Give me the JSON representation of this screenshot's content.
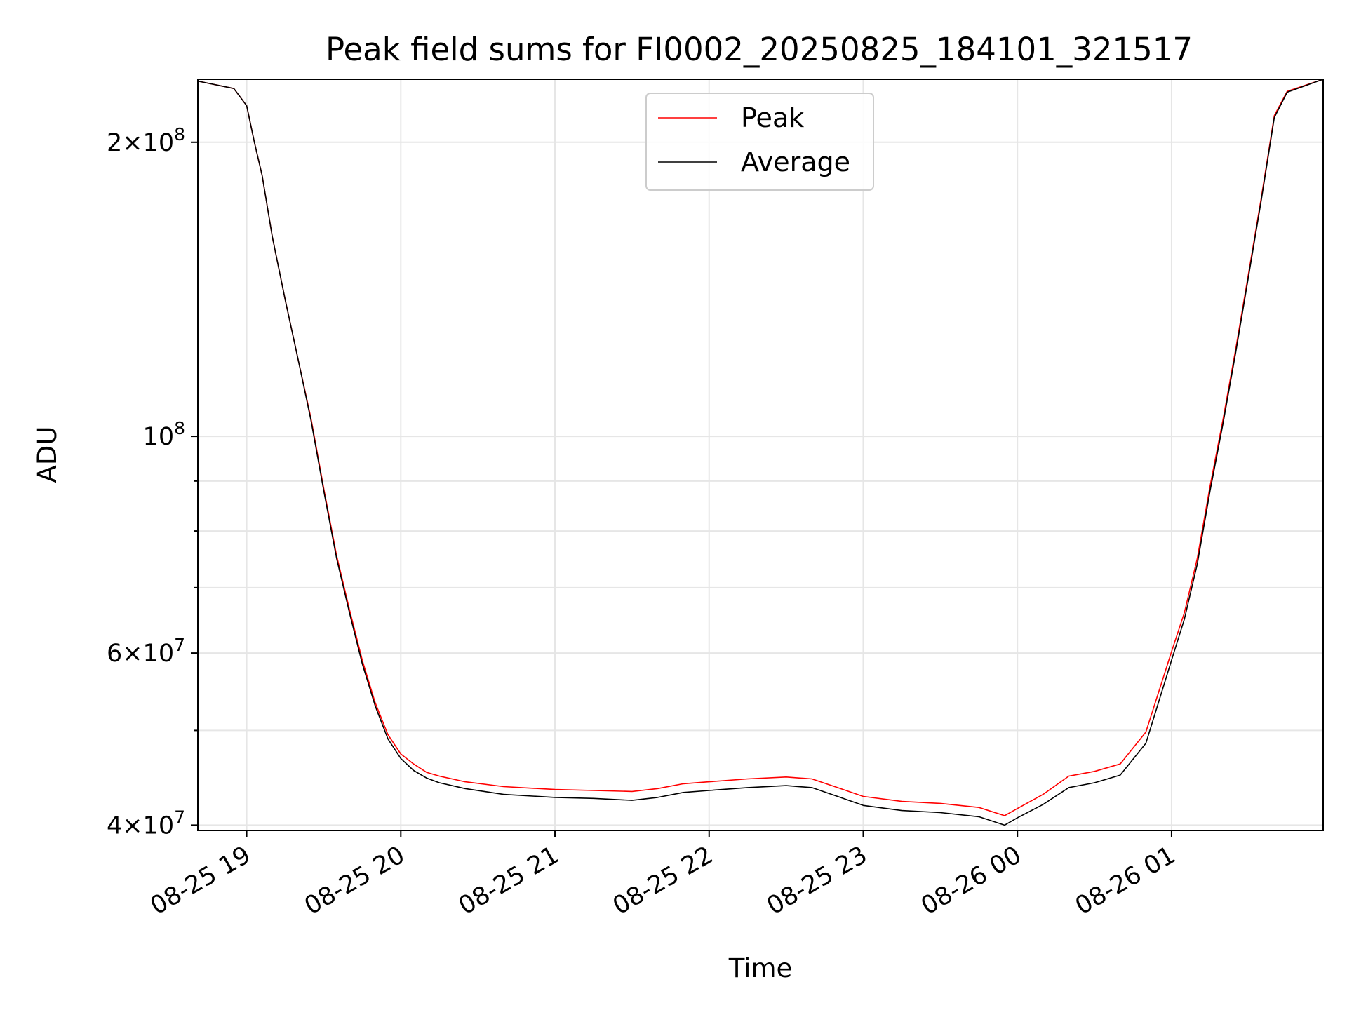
{
  "chart_data": {
    "type": "line",
    "title": "Peak field sums for FI0002_20250825_184101_321517",
    "xlabel": "Time",
    "ylabel": "ADU",
    "y_scale": "log",
    "ylim": [
      39500000,
      232000000
    ],
    "xlim": [
      "2025-08-25 18:41",
      "2025-08-26 01:59"
    ],
    "x_ticks": [
      {
        "t": "2025-08-25 19:00",
        "label": "08-25 19"
      },
      {
        "t": "2025-08-25 20:00",
        "label": "08-25 20"
      },
      {
        "t": "2025-08-25 21:00",
        "label": "08-25 21"
      },
      {
        "t": "2025-08-25 22:00",
        "label": "08-25 22"
      },
      {
        "t": "2025-08-25 23:00",
        "label": "08-25 23"
      },
      {
        "t": "2025-08-26 00:00",
        "label": "08-26 00"
      },
      {
        "t": "2025-08-26 01:00",
        "label": "08-26 01"
      }
    ],
    "y_ticks": [
      {
        "v": 40000000,
        "base": "4",
        "exp": "7",
        "major": true
      },
      {
        "v": 50000000,
        "major": false
      },
      {
        "v": 60000000,
        "base": "6",
        "exp": "7",
        "major": true
      },
      {
        "v": 70000000,
        "major": false
      },
      {
        "v": 80000000,
        "major": false
      },
      {
        "v": 90000000,
        "major": false
      },
      {
        "v": 100000000,
        "base": "",
        "exp": "8",
        "major": true
      },
      {
        "v": 200000000,
        "base": "2",
        "exp": "8",
        "major": true
      }
    ],
    "grid": true,
    "legend_position": "top-center",
    "series": [
      {
        "name": "Average",
        "color": "#000000",
        "x": [
          "2025-08-25 18:41",
          "2025-08-25 18:55",
          "2025-08-25 19:00",
          "2025-08-25 19:03",
          "2025-08-25 19:06",
          "2025-08-25 19:10",
          "2025-08-25 19:15",
          "2025-08-25 19:20",
          "2025-08-25 19:25",
          "2025-08-25 19:30",
          "2025-08-25 19:35",
          "2025-08-25 19:40",
          "2025-08-25 19:45",
          "2025-08-25 19:50",
          "2025-08-25 19:55",
          "2025-08-25 20:00",
          "2025-08-25 20:05",
          "2025-08-25 20:10",
          "2025-08-25 20:15",
          "2025-08-25 20:25",
          "2025-08-25 20:40",
          "2025-08-25 21:00",
          "2025-08-25 21:15",
          "2025-08-25 21:30",
          "2025-08-25 21:40",
          "2025-08-25 21:50",
          "2025-08-25 22:00",
          "2025-08-25 22:15",
          "2025-08-25 22:30",
          "2025-08-25 22:40",
          "2025-08-25 22:50",
          "2025-08-25 23:00",
          "2025-08-25 23:15",
          "2025-08-25 23:30",
          "2025-08-25 23:45",
          "2025-08-25 23:55",
          "2025-08-26 00:00",
          "2025-08-26 00:10",
          "2025-08-26 00:20",
          "2025-08-26 00:30",
          "2025-08-26 00:40",
          "2025-08-26 00:50",
          "2025-08-26 01:00",
          "2025-08-26 01:05",
          "2025-08-26 01:10",
          "2025-08-26 01:15",
          "2025-08-26 01:20",
          "2025-08-26 01:25",
          "2025-08-26 01:30",
          "2025-08-26 01:35",
          "2025-08-26 01:40",
          "2025-08-26 01:45",
          "2025-08-26 01:59"
        ],
        "y": [
          231000000,
          227000000,
          218000000,
          200000000,
          185000000,
          160000000,
          138000000,
          120000000,
          104000000,
          88000000,
          75000000,
          66000000,
          58500000,
          53000000,
          49000000,
          46800000,
          45500000,
          44700000,
          44200000,
          43600000,
          43000000,
          42700000,
          42600000,
          42400000,
          42700000,
          43200000,
          43400000,
          43700000,
          43900000,
          43700000,
          42800000,
          41900000,
          41400000,
          41200000,
          40800000,
          40000000,
          40700000,
          42000000,
          43700000,
          44200000,
          45000000,
          48500000,
          59000000,
          65000000,
          74000000,
          88000000,
          103000000,
          122000000,
          146000000,
          175000000,
          212000000,
          225000000,
          232000000
        ]
      },
      {
        "name": "Peak",
        "color": "#ff0000",
        "x": [
          "2025-08-25 18:41",
          "2025-08-25 18:55",
          "2025-08-25 19:00",
          "2025-08-25 19:03",
          "2025-08-25 19:06",
          "2025-08-25 19:10",
          "2025-08-25 19:15",
          "2025-08-25 19:20",
          "2025-08-25 19:25",
          "2025-08-25 19:30",
          "2025-08-25 19:35",
          "2025-08-25 19:40",
          "2025-08-25 19:45",
          "2025-08-25 19:50",
          "2025-08-25 19:55",
          "2025-08-25 20:00",
          "2025-08-25 20:05",
          "2025-08-25 20:10",
          "2025-08-25 20:15",
          "2025-08-25 20:25",
          "2025-08-25 20:40",
          "2025-08-25 21:00",
          "2025-08-25 21:15",
          "2025-08-25 21:30",
          "2025-08-25 21:40",
          "2025-08-25 21:50",
          "2025-08-25 22:00",
          "2025-08-25 22:15",
          "2025-08-25 22:30",
          "2025-08-25 22:40",
          "2025-08-25 22:50",
          "2025-08-25 23:00",
          "2025-08-25 23:15",
          "2025-08-25 23:30",
          "2025-08-25 23:45",
          "2025-08-25 23:55",
          "2025-08-26 00:00",
          "2025-08-26 00:10",
          "2025-08-26 00:20",
          "2025-08-26 00:30",
          "2025-08-26 00:40",
          "2025-08-26 00:50",
          "2025-08-26 01:00",
          "2025-08-26 01:05",
          "2025-08-26 01:10",
          "2025-08-26 01:15",
          "2025-08-26 01:20",
          "2025-08-26 01:25",
          "2025-08-26 01:30",
          "2025-08-26 01:35",
          "2025-08-26 01:40",
          "2025-08-26 01:45",
          "2025-08-26 01:59"
        ],
        "y": [
          231000000,
          227000000,
          218000000,
          200000000,
          185000000,
          160000000,
          138000000,
          120000000,
          104500000,
          88500000,
          75500000,
          66500000,
          59000000,
          53400000,
          49500000,
          47300000,
          46200000,
          45300000,
          44900000,
          44300000,
          43800000,
          43500000,
          43400000,
          43300000,
          43600000,
          44100000,
          44300000,
          44600000,
          44800000,
          44600000,
          43700000,
          42800000,
          42300000,
          42100000,
          41700000,
          40900000,
          41600000,
          43000000,
          44900000,
          45400000,
          46200000,
          49800000,
          60200000,
          66000000,
          75000000,
          89000000,
          104000000,
          123000000,
          147000000,
          176000000,
          213000000,
          225500000,
          232000000
        ]
      }
    ]
  }
}
